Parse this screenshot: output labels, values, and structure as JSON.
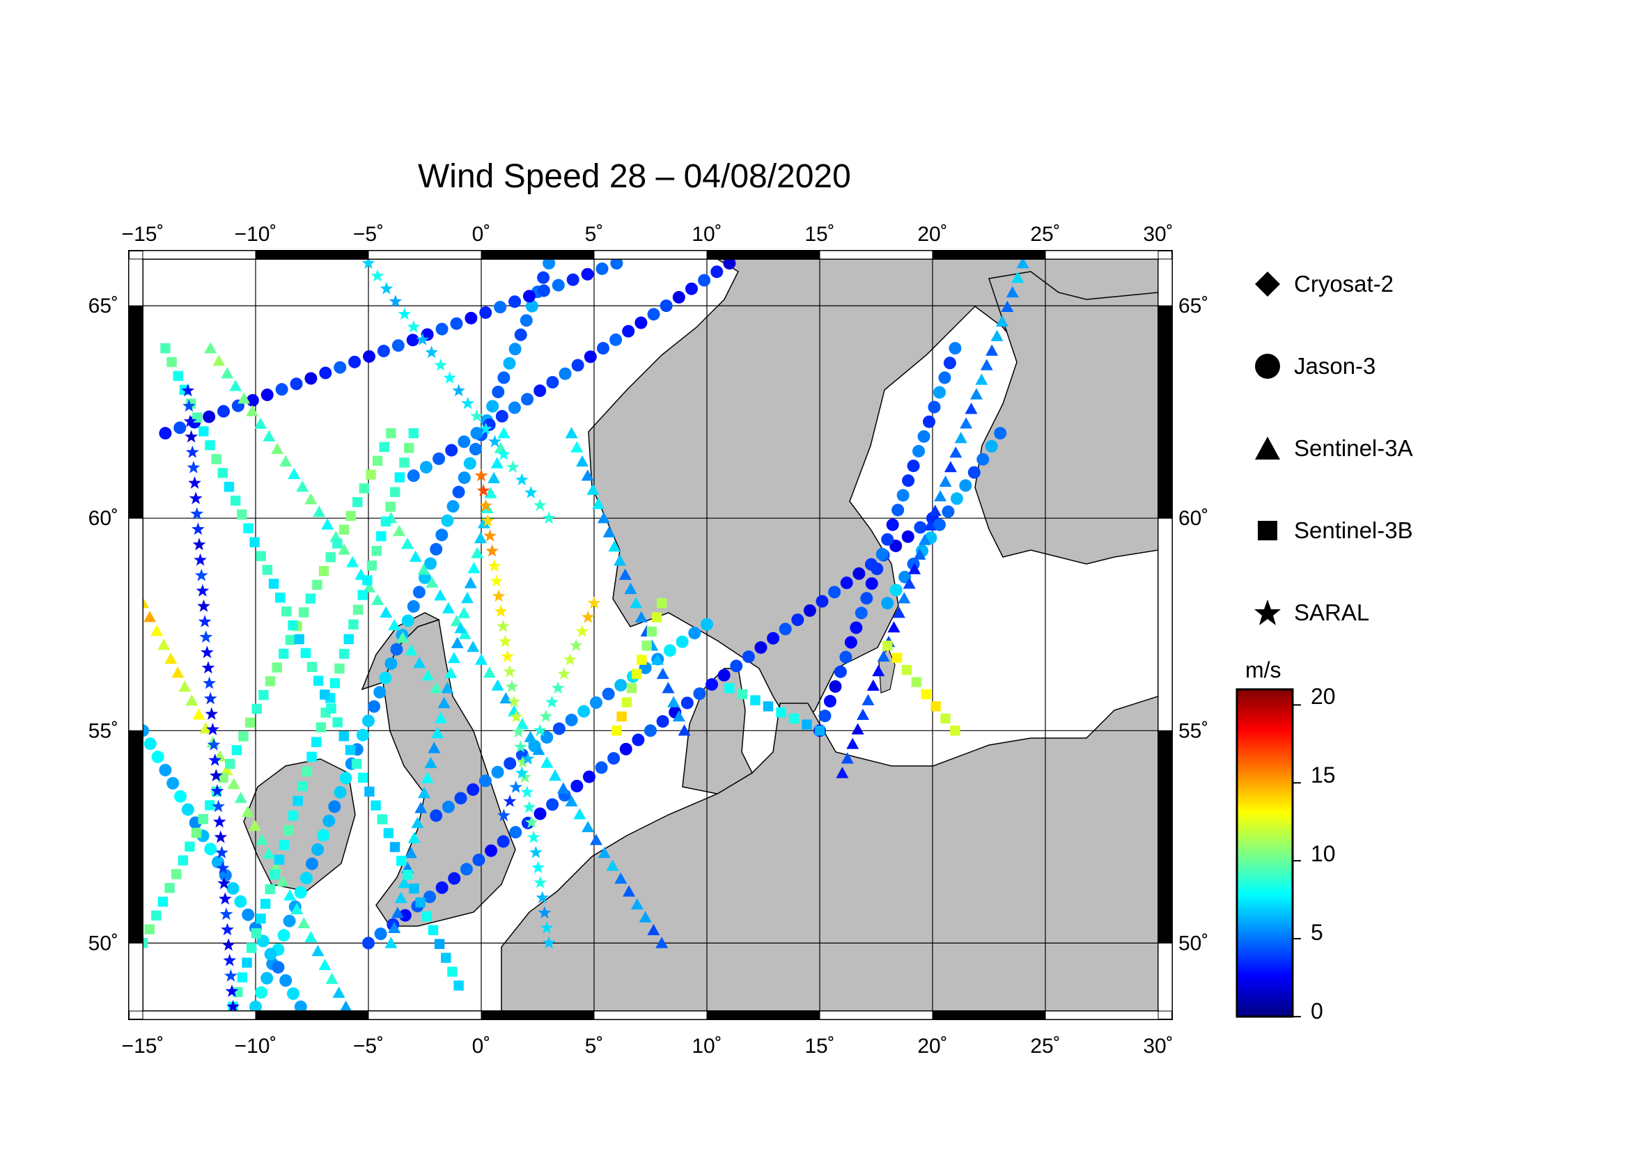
{
  "title": "Wind Speed 28 – 04/08/2020",
  "map": {
    "lon_range": [
      -15,
      30
    ],
    "lat_range": [
      48.4,
      66.1
    ],
    "lon_ticks": [
      {
        "v": -15,
        "label": "−15˚"
      },
      {
        "v": -10,
        "label": "−10˚"
      },
      {
        "v": -5,
        "label": "−5˚"
      },
      {
        "v": 0,
        "label": "0˚"
      },
      {
        "v": 5,
        "label": "5˚"
      },
      {
        "v": 10,
        "label": "10˚"
      },
      {
        "v": 15,
        "label": "15˚"
      },
      {
        "v": 20,
        "label": "20˚"
      },
      {
        "v": 25,
        "label": "25˚"
      },
      {
        "v": 30,
        "label": "30˚"
      }
    ],
    "lat_ticks": [
      {
        "v": 50,
        "label": "50˚"
      },
      {
        "v": 55,
        "label": "55˚"
      },
      {
        "v": 60,
        "label": "60˚"
      },
      {
        "v": 65,
        "label": "65˚"
      }
    ],
    "land_color": "#bdbdbd",
    "ocean_color": "#ffffff"
  },
  "legend": [
    {
      "name": "Cryosat-2",
      "symbol": "diamond"
    },
    {
      "name": "Jason-3",
      "symbol": "circle"
    },
    {
      "name": "Sentinel-3A",
      "symbol": "triangle"
    },
    {
      "name": "Sentinel-3B",
      "symbol": "square"
    },
    {
      "name": "SARAL",
      "symbol": "star"
    }
  ],
  "colorbar": {
    "unit": "m/s",
    "ticks": [
      "20",
      "15",
      "10",
      "5",
      "0"
    ],
    "range": [
      0,
      21
    ],
    "colors": [
      "#000080",
      "#0000ff",
      "#0080ff",
      "#00ffff",
      "#80ff80",
      "#ffff00",
      "#ff8000",
      "#ff0000",
      "#800000"
    ]
  },
  "chart_data": {
    "type": "scatter",
    "title": "Wind Speed 28 – 04/08/2020",
    "xlabel": "",
    "ylabel": "",
    "xlim": [
      -15,
      30
    ],
    "ylim": [
      48.4,
      66.1
    ],
    "value_unit": "m/s",
    "series": [
      {
        "name": "Jason-3",
        "symbol": "circle",
        "tracks": [
          {
            "from": [
              -10,
              48.5
            ],
            "to": [
              3,
              66
            ],
            "speed": [
              7,
              5
            ]
          },
          {
            "from": [
              -5,
              50
            ],
            "to": [
              20,
              60
            ],
            "speed": [
              4,
              3
            ]
          },
          {
            "from": [
              -14,
              62
            ],
            "to": [
              6,
              66
            ],
            "speed": [
              3,
              4
            ]
          },
          {
            "from": [
              -2,
              53
            ],
            "to": [
              10,
              57.5
            ],
            "speed": [
              4,
              7
            ]
          },
          {
            "from": [
              -8,
              48.5
            ],
            "to": [
              -15,
              55
            ],
            "speed": [
              6,
              7
            ]
          },
          {
            "from": [
              15,
              55
            ],
            "to": [
              21,
              64
            ],
            "speed": [
              3,
              5
            ]
          },
          {
            "from": [
              18,
              58
            ],
            "to": [
              23,
              62
            ],
            "speed": [
              6,
              5
            ]
          },
          {
            "from": [
              -3,
              61
            ],
            "to": [
              11,
              66
            ],
            "speed": [
              5,
              3
            ]
          }
        ]
      },
      {
        "name": "Sentinel-3A",
        "symbol": "triangle",
        "tracks": [
          {
            "from": [
              -15,
              58
            ],
            "to": [
              -6,
              48.5
            ],
            "speed": [
              14,
              7
            ]
          },
          {
            "from": [
              -4,
              60
            ],
            "to": [
              8,
              50
            ],
            "speed": [
              9,
              5
            ]
          },
          {
            "from": [
              1,
              62
            ],
            "to": [
              -4,
              50
            ],
            "speed": [
              8,
              6
            ]
          },
          {
            "from": [
              16,
              54
            ],
            "to": [
              24,
              66
            ],
            "speed": [
              3,
              6
            ]
          },
          {
            "from": [
              -12,
              64
            ],
            "to": [
              -2,
              56
            ],
            "speed": [
              10,
              8
            ]
          },
          {
            "from": [
              4,
              62
            ],
            "to": [
              9,
              55
            ],
            "speed": [
              7,
              5
            ]
          }
        ]
      },
      {
        "name": "Sentinel-3B",
        "symbol": "square",
        "tracks": [
          {
            "from": [
              -15,
              50
            ],
            "to": [
              -4,
              62
            ],
            "speed": [
              9,
              10
            ]
          },
          {
            "from": [
              -11,
              48.5
            ],
            "to": [
              -3,
              62
            ],
            "speed": [
              8,
              9
            ]
          },
          {
            "from": [
              -1,
              49
            ],
            "to": [
              -14,
              64
            ],
            "speed": [
              7,
              9
            ]
          },
          {
            "from": [
              6,
              55
            ],
            "to": [
              8,
              58
            ],
            "speed": [
              13,
              11
            ]
          },
          {
            "from": [
              11,
              56
            ],
            "to": [
              15,
              55
            ],
            "speed": [
              8,
              7
            ]
          },
          {
            "from": [
              18,
              57
            ],
            "to": [
              21,
              55
            ],
            "speed": [
              12,
              13
            ]
          }
        ]
      },
      {
        "name": "SARAL",
        "symbol": "star",
        "tracks": [
          {
            "from": [
              -13,
              63
            ],
            "to": [
              -11,
              48.5
            ],
            "speed": [
              3,
              3
            ]
          },
          {
            "from": [
              0,
              61
            ],
            "to": [
              3,
              50
            ],
            "speed": [
              16,
              6
            ]
          },
          {
            "from": [
              -5,
              66
            ],
            "to": [
              3,
              60
            ],
            "speed": [
              7,
              8
            ]
          },
          {
            "from": [
              5,
              58
            ],
            "to": [
              1,
              53
            ],
            "speed": [
              14,
              4
            ]
          }
        ]
      }
    ]
  }
}
